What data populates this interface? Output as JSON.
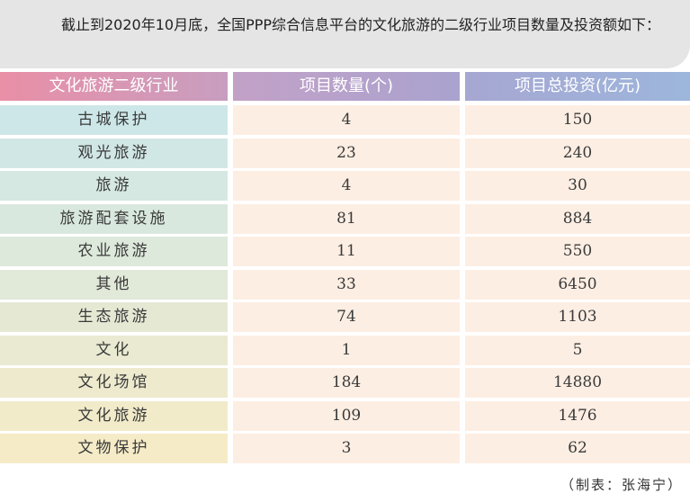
{
  "intro": "截止到2020年10月底，全国PPP综合信息平台的文化旅游的二级行业项目数量及投资额如下：",
  "chart_data": {
    "type": "table",
    "columns": [
      "文化旅游二级行业",
      "项目数量(个)",
      "项目总投资(亿元)"
    ],
    "rows": [
      [
        "古城保护",
        "4",
        "150"
      ],
      [
        "观光旅游",
        "23",
        "240"
      ],
      [
        "旅游",
        "4",
        "30"
      ],
      [
        "旅游配套设施",
        "81",
        "884"
      ],
      [
        "农业旅游",
        "11",
        "550"
      ],
      [
        "其他",
        "33",
        "6450"
      ],
      [
        "生态旅游",
        "74",
        "1103"
      ],
      [
        "文化",
        "1",
        "5"
      ],
      [
        "文化场馆",
        "184",
        "14880"
      ],
      [
        "文化旅游",
        "109",
        "1476"
      ],
      [
        "文物保护",
        "3",
        "62"
      ]
    ]
  },
  "credit": "（制表：张海宁）",
  "colors": {
    "header_gradient": [
      "#e98fa6",
      "#c89ec0",
      "#a9a3cf",
      "#9db6dc"
    ],
    "first_column_gradient": [
      "#cde7e8",
      "#f5ebc7"
    ],
    "value_cell_bg": "#fdeee3"
  }
}
